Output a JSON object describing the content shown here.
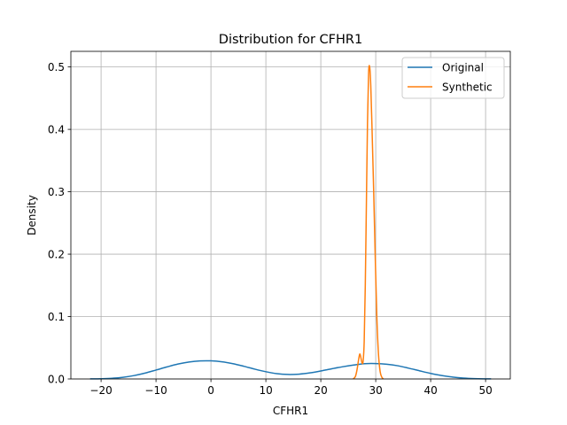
{
  "chart_data": {
    "type": "line",
    "title": "Distribution for CFHR1",
    "xlabel": "CFHR1",
    "ylabel": "Density",
    "xlim": [
      -25.5,
      54.5
    ],
    "ylim": [
      0,
      0.525
    ],
    "xticks": [
      -20,
      -10,
      0,
      10,
      20,
      30,
      40,
      50
    ],
    "xtick_labels": [
      "−20",
      "−10",
      "0",
      "10",
      "20",
      "30",
      "40",
      "50"
    ],
    "yticks": [
      0.0,
      0.1,
      0.2,
      0.3,
      0.4,
      0.5
    ],
    "ytick_labels": [
      "0.0",
      "0.1",
      "0.2",
      "0.3",
      "0.4",
      "0.5"
    ],
    "grid": true,
    "legend_position": "upper right",
    "series": [
      {
        "name": "Original",
        "color": "#1f77b4",
        "x": [
          -22,
          -20,
          -18,
          -16,
          -14,
          -12,
          -10,
          -8,
          -6,
          -4,
          -2,
          0,
          2,
          4,
          6,
          8,
          10,
          12,
          14,
          16,
          18,
          20,
          22,
          24,
          26,
          28,
          30,
          32,
          34,
          36,
          38,
          40,
          42,
          44,
          46,
          48,
          50,
          51
        ],
        "y": [
          0.0001,
          0.0004,
          0.0011,
          0.0027,
          0.0054,
          0.0094,
          0.0143,
          0.0193,
          0.0239,
          0.0272,
          0.0289,
          0.029,
          0.0275,
          0.0245,
          0.0203,
          0.0157,
          0.0116,
          0.0085,
          0.0072,
          0.0077,
          0.0097,
          0.0128,
          0.0163,
          0.0196,
          0.0223,
          0.0245,
          0.0247,
          0.0236,
          0.0212,
          0.0173,
          0.013,
          0.0089,
          0.0055,
          0.0031,
          0.0015,
          0.0006,
          0.0002,
          0.0001
        ]
      },
      {
        "name": "Synthetic",
        "color": "#ff7f0e",
        "x": [
          25.9,
          26.3,
          26.6,
          26.9,
          27.1,
          27.3,
          27.5,
          27.7,
          27.9,
          28.1,
          28.3,
          28.5,
          28.7,
          28.9,
          29.1,
          29.3,
          29.6,
          29.9,
          30.2,
          30.5,
          30.8,
          31.1,
          31.4
        ],
        "y": [
          0.0,
          0.004,
          0.015,
          0.032,
          0.04,
          0.034,
          0.026,
          0.028,
          0.06,
          0.15,
          0.28,
          0.41,
          0.49,
          0.5,
          0.47,
          0.41,
          0.31,
          0.2,
          0.1,
          0.04,
          0.012,
          0.003,
          0.0
        ]
      }
    ]
  }
}
